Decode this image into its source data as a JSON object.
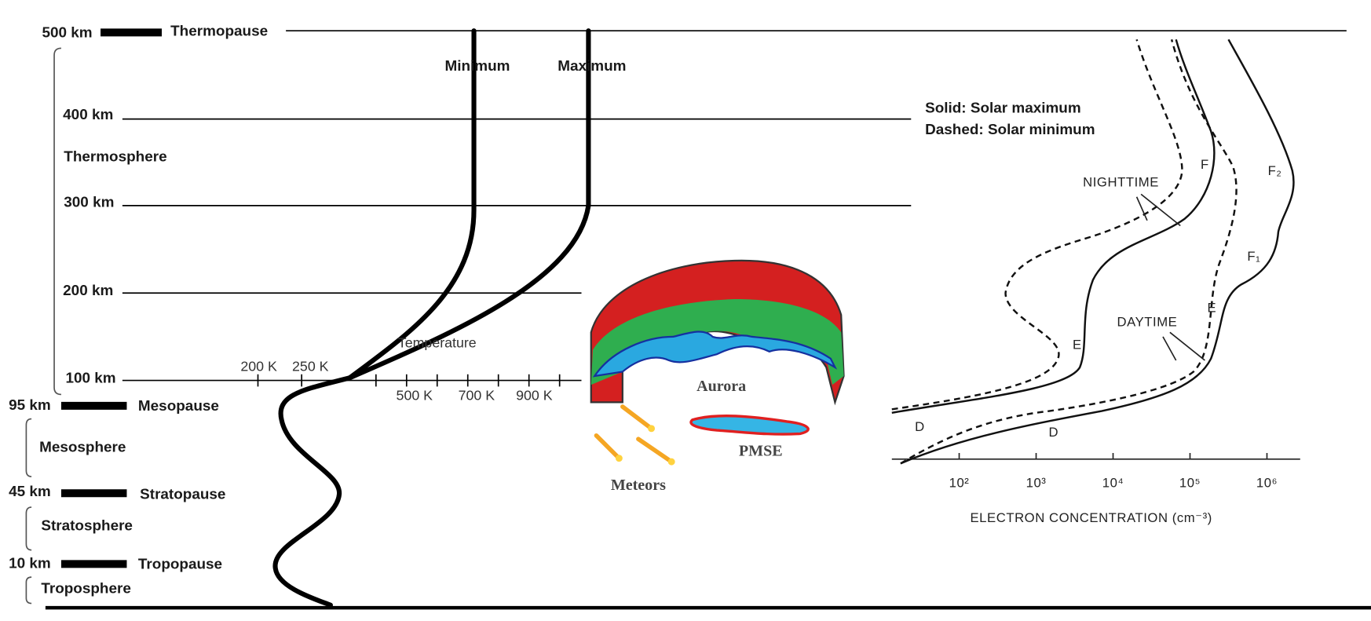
{
  "levels": [
    {
      "altitude": "500 km",
      "name": "Thermopause"
    },
    {
      "altitude": "400 km"
    },
    {
      "altitude": "300 km"
    },
    {
      "altitude": "200 km"
    },
    {
      "altitude": "100 km"
    },
    {
      "altitude": "95 km",
      "name": "Mesopause"
    },
    {
      "altitude": "45 km",
      "name": "Stratopause"
    },
    {
      "altitude": "10 km",
      "name": "Tropopause"
    }
  ],
  "layers": [
    "Thermosphere",
    "Mesosphere",
    "Stratosphere",
    "Troposphere"
  ],
  "temperature": {
    "curves": [
      "Minimum",
      "Maximum"
    ],
    "label": "Temperature",
    "ticks": [
      "200 K",
      "250 K",
      "500 K",
      "700 K",
      "900 K"
    ]
  },
  "phenomena": [
    "Aurora",
    "PMSE",
    "Meteors"
  ],
  "electron_panel": {
    "legend": [
      "Solid: Solar maximum",
      "Dashed: Solar minimum"
    ],
    "labels": [
      "NIGHTTIME",
      "DAYTIME",
      "F",
      "E",
      "D",
      "F₂",
      "F₁",
      "E",
      "D"
    ],
    "x_ticks": [
      "10²",
      "10³",
      "10⁴",
      "10⁵",
      "10⁶"
    ],
    "x_axis_title": "ELECTRON CONCENTRATION (cm⁻³)"
  }
}
